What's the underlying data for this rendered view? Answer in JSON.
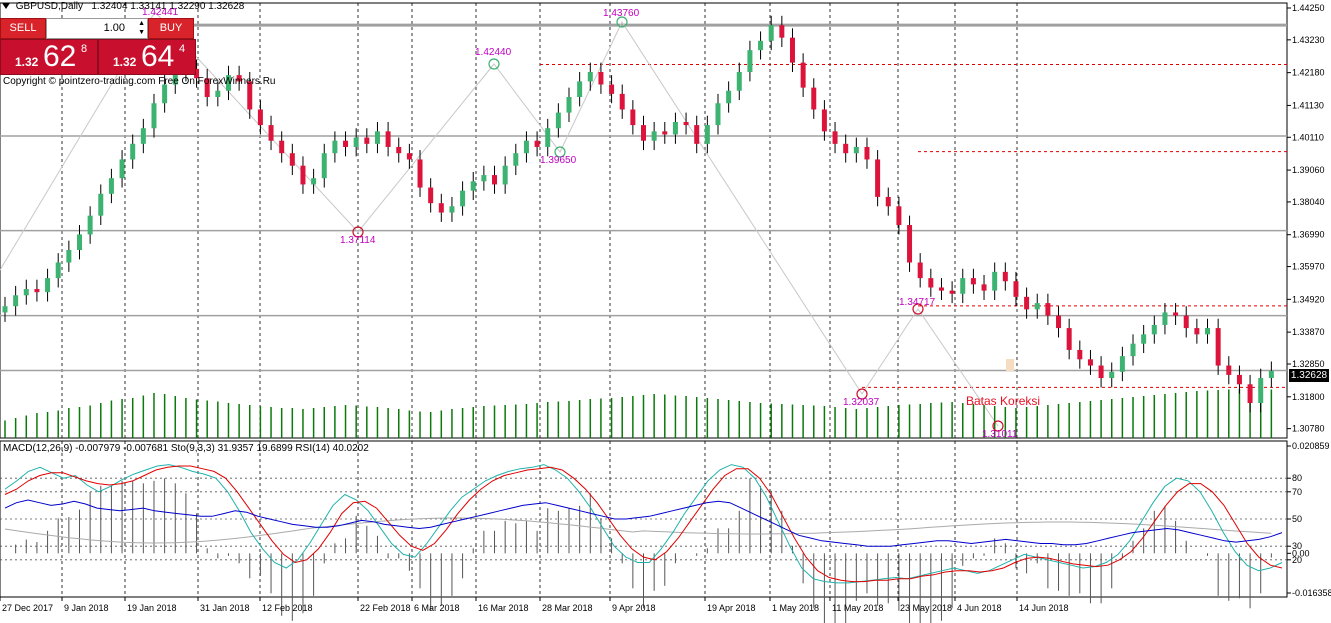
{
  "header": {
    "symbol_title": "GBPUSD,Daily",
    "ohlc": "1.32404 1.33141 1.32290 1.32628"
  },
  "trade_panel": {
    "sell_label": "SELL",
    "buy_label": "BUY",
    "lot_value": "1.00",
    "bid": {
      "prefix": "1.32",
      "big": "62",
      "sup": "8"
    },
    "ask": {
      "prefix": "1.32",
      "big": "64",
      "sup": "4"
    }
  },
  "copyright": "Copyright © pointzero-trading.com  Free On ForexWinners.Ru",
  "indicator_header": "MACD(12,26,9) -0.007979 -0.007681   Sto(9,3,3) 31.9357 19.6899   RSI(14) 40.0202",
  "price_axis": [
    "1.44250",
    "1.43230",
    "1.42180",
    "1.41130",
    "1.40110",
    "1.39060",
    "1.38040",
    "1.36990",
    "1.35970",
    "1.34920",
    "1.33870",
    "1.32850",
    "1.31800",
    "1.30780"
  ],
  "indicator_axis": [
    "0.020859",
    "80",
    "70",
    "50",
    "30",
    "20",
    "0.00",
    "-0.016358"
  ],
  "current_price_tag": "1.32628",
  "time_axis": [
    "27 Dec 2017",
    "9 Jan 2018",
    "19 Jan 2018",
    "31 Jan 2018",
    "12 Feb 2018",
    "22 Feb 2018",
    "6 Mar 2018",
    "16 Mar 2018",
    "28 Mar 2018",
    "9 Apr 2018",
    "19 Apr 2018",
    "1 May 2018",
    "11 May 2018",
    "23 May 2018",
    "4 Jun 2018",
    "14 Jun 2018"
  ],
  "annotations": [
    {
      "text": "1.42440",
      "kind": "high"
    },
    {
      "text": "1.43760",
      "kind": "high"
    },
    {
      "text": "1.39650",
      "kind": "low"
    },
    {
      "text": "1.37114",
      "kind": "low"
    },
    {
      "text": "1.34717",
      "kind": "high"
    },
    {
      "text": "1.32037",
      "kind": "low"
    },
    {
      "text": "1.31011",
      "kind": "low"
    },
    {
      "text": "1.42441",
      "kind": "high"
    }
  ],
  "koreksi_label": "Batas Koreksi",
  "colors": {
    "bull": "#3cb371",
    "bear": "#dc143c",
    "volume": "#0a7a0a",
    "macd_line": "#0000cc",
    "sto_main": "#20b2aa",
    "sto_signal": "#e00000",
    "signal_grey": "#aaaaaa",
    "annotation": "#c000c0",
    "level_red": "#e00000",
    "level_grey": "#a0a0a0"
  },
  "chart_data": [
    {
      "type": "candlestick",
      "title": "GBPUSD,Daily",
      "ylim": [
        1.3048,
        1.4441
      ],
      "dates": [
        "2017-12-27",
        "2018-01-09",
        "2018-01-19",
        "2018-01-31",
        "2018-02-12",
        "2018-02-22",
        "2018-03-06",
        "2018-03-16",
        "2018-03-28",
        "2018-04-09",
        "2018-04-19",
        "2018-05-01",
        "2018-05-11",
        "2018-05-23",
        "2018-06-04",
        "2018-06-14"
      ],
      "close_path": [
        1.347,
        1.3505,
        1.3525,
        1.3515,
        1.356,
        1.361,
        1.365,
        1.37,
        1.376,
        1.383,
        1.388,
        1.394,
        1.399,
        1.404,
        1.412,
        1.418,
        1.422,
        1.423,
        1.42,
        1.414,
        1.416,
        1.421,
        1.419,
        1.41,
        1.405,
        1.4,
        1.396,
        1.392,
        1.386,
        1.388,
        1.396,
        1.4,
        1.398,
        1.401,
        1.399,
        1.403,
        1.398,
        1.396,
        1.394,
        1.385,
        1.38,
        1.377,
        1.379,
        1.384,
        1.387,
        1.389,
        1.386,
        1.392,
        1.396,
        1.4,
        1.398,
        1.404,
        1.409,
        1.414,
        1.419,
        1.422,
        1.418,
        1.415,
        1.41,
        1.405,
        1.4,
        1.403,
        1.402,
        1.406,
        1.405,
        1.399,
        1.405,
        1.412,
        1.416,
        1.422,
        1.429,
        1.432,
        1.437,
        1.433,
        1.425,
        1.417,
        1.41,
        1.403,
        1.399,
        1.396,
        1.398,
        1.394,
        1.382,
        1.379,
        1.373,
        1.361,
        1.356,
        1.353,
        1.352,
        1.351,
        1.356,
        1.354,
        1.352,
        1.358,
        1.355,
        1.35,
        1.346,
        1.348,
        1.344,
        1.34,
        1.333,
        1.33,
        1.328,
        1.324,
        1.326,
        1.331,
        1.335,
        1.338,
        1.341,
        1.345,
        1.344,
        1.34,
        1.338,
        1.34,
        1.328,
        1.325,
        1.322,
        1.316,
        1.324,
        1.3263
      ],
      "volume_profile": [
        0.35,
        0.4,
        0.45,
        0.5,
        0.52,
        0.55,
        0.6,
        0.62,
        0.65,
        0.7,
        0.75,
        0.78,
        0.8,
        0.85,
        0.9,
        0.88,
        0.84,
        0.8,
        0.77,
        0.75,
        0.73,
        0.7,
        0.68,
        0.66,
        0.64,
        0.62,
        0.6,
        0.6,
        0.58,
        0.6,
        0.62,
        0.64,
        0.66,
        0.65,
        0.63,
        0.62,
        0.6,
        0.58,
        0.55,
        0.53,
        0.52,
        0.55,
        0.58,
        0.6,
        0.62,
        0.64,
        0.65,
        0.66,
        0.67,
        0.68,
        0.7,
        0.72,
        0.73,
        0.74,
        0.76,
        0.78,
        0.79,
        0.8,
        0.82,
        0.84,
        0.86,
        0.88,
        0.87,
        0.85,
        0.84,
        0.82,
        0.8,
        0.78,
        0.76,
        0.74,
        0.72,
        0.7,
        0.69,
        0.68,
        0.67,
        0.66,
        0.65,
        0.64,
        0.62,
        0.6,
        0.58,
        0.6,
        0.62,
        0.64,
        0.66,
        0.67,
        0.68,
        0.7,
        0.71,
        0.72,
        0.7,
        0.68,
        0.66,
        0.64,
        0.62,
        0.6,
        0.62,
        0.64,
        0.66,
        0.68,
        0.7,
        0.72,
        0.74,
        0.76,
        0.78,
        0.8,
        0.82,
        0.84,
        0.86,
        0.88,
        0.9,
        0.92,
        0.94,
        0.95,
        0.96,
        0.97,
        0.98,
        1.0,
        0.99,
        0.97
      ],
      "levels": [
        {
          "price": 1.4244,
          "style": "dashed-red"
        },
        {
          "price": 1.3965,
          "style": "dashed-red"
        },
        {
          "price": 1.3471,
          "style": "dashed-red"
        },
        {
          "price": 1.321,
          "style": "dashed-red"
        },
        {
          "price": 1.437,
          "style": "solid-grey"
        },
        {
          "price": 1.4015,
          "style": "solid-grey"
        },
        {
          "price": 1.3712,
          "style": "solid-grey"
        },
        {
          "price": 1.344,
          "style": "solid-grey"
        },
        {
          "price": 1.3264,
          "style": "solid-grey"
        }
      ]
    },
    {
      "type": "line",
      "title": "MACD(12,26,9) / Sto(9,3,3) / RSI(14)",
      "scales": {
        "percent": [
          0,
          100
        ],
        "macd": [
          -0.016358,
          0.020859
        ]
      },
      "reference_levels": [
        80,
        70,
        50,
        30,
        20
      ],
      "series": [
        {
          "name": "Sto main",
          "values": [
            72,
            78,
            85,
            88,
            84,
            80,
            82,
            75,
            70,
            74,
            79,
            83,
            86,
            89,
            90,
            88,
            85,
            83,
            80,
            70,
            56,
            40,
            28,
            18,
            14,
            20,
            32,
            46,
            60,
            68,
            64,
            56,
            44,
            32,
            24,
            22,
            32,
            44,
            56,
            66,
            72,
            78,
            82,
            85,
            87,
            88,
            90,
            86,
            80,
            70,
            58,
            44,
            30,
            22,
            18,
            18,
            28,
            40,
            54,
            66,
            78,
            86,
            90,
            88,
            80,
            66,
            48,
            30,
            14,
            6,
            4,
            3,
            3,
            4,
            5,
            6,
            7,
            6,
            8,
            10,
            12,
            14,
            12,
            10,
            12,
            16,
            20,
            24,
            22,
            20,
            18,
            16,
            14,
            15,
            18,
            24,
            34,
            48,
            62,
            74,
            80,
            78,
            70,
            56,
            40,
            26,
            16,
            12,
            14,
            18
          ]
        },
        {
          "name": "Sto signal",
          "values": [
            68,
            72,
            78,
            82,
            84,
            84,
            81,
            78,
            76,
            75,
            76,
            78,
            82,
            86,
            88,
            89,
            89,
            87,
            85,
            80,
            70,
            58,
            46,
            34,
            24,
            18,
            20,
            28,
            40,
            54,
            62,
            63,
            58,
            48,
            38,
            30,
            27,
            32,
            42,
            54,
            64,
            72,
            78,
            82,
            84,
            86,
            87,
            88,
            86,
            80,
            72,
            62,
            50,
            38,
            28,
            22,
            20,
            26,
            36,
            48,
            60,
            72,
            82,
            87,
            87,
            80,
            68,
            52,
            36,
            22,
            12,
            7,
            5,
            4,
            4,
            5,
            5,
            6,
            6,
            8,
            9,
            11,
            12,
            12,
            11,
            12,
            14,
            18,
            21,
            22,
            21,
            19,
            17,
            16,
            15,
            16,
            20,
            26,
            36,
            48,
            60,
            70,
            76,
            76,
            70,
            60,
            46,
            32,
            22,
            16,
            14
          ]
        },
        {
          "name": "RSI",
          "values": [
            58,
            62,
            64,
            62,
            60,
            61,
            63,
            61,
            58,
            57,
            56,
            57,
            58,
            56,
            55,
            54,
            53,
            52,
            52,
            54,
            56,
            55,
            52,
            50,
            48,
            46,
            45,
            44,
            44,
            45,
            47,
            49,
            48,
            46,
            45,
            44,
            43,
            44,
            46,
            48,
            50,
            52,
            54,
            56,
            58,
            60,
            61,
            62,
            60,
            58,
            56,
            54,
            52,
            50,
            50,
            51,
            52,
            54,
            56,
            58,
            60,
            62,
            63,
            62,
            58,
            54,
            50,
            46,
            42,
            38,
            36,
            34,
            33,
            32,
            31,
            30,
            30,
            30,
            31,
            32,
            33,
            34,
            34,
            33,
            32,
            33,
            34,
            35,
            34,
            33,
            32,
            32,
            31,
            31,
            32,
            34,
            36,
            38,
            40,
            41,
            42,
            43,
            42,
            40,
            38,
            36,
            34,
            33,
            34,
            35,
            37,
            40
          ]
        }
      ]
    }
  ]
}
